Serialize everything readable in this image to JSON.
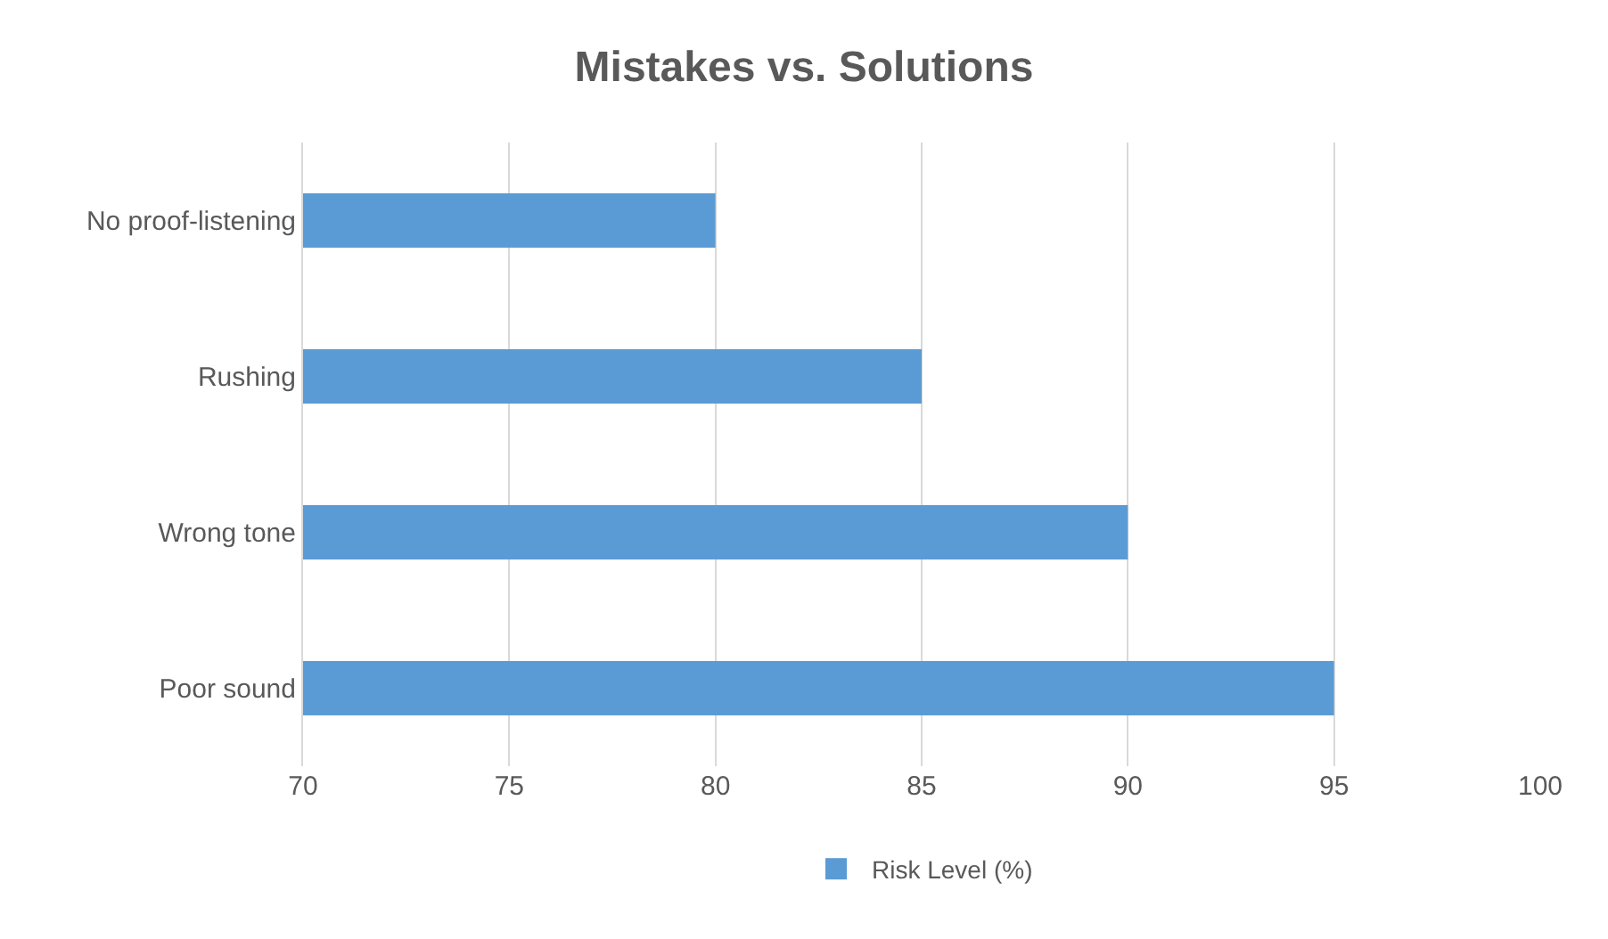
{
  "chart_data": {
    "type": "bar",
    "title": "Mistakes vs. Solutions",
    "orientation": "horizontal",
    "categories": [
      "No proof-listening",
      "Rushing",
      "Wrong tone",
      "Poor sound"
    ],
    "series": [
      {
        "name": "Risk Level (%)",
        "color": "#5b9bd5",
        "values": [
          80,
          85,
          90,
          95
        ]
      }
    ],
    "xlim": [
      70,
      100
    ],
    "xticks": [
      70,
      75,
      80,
      85,
      90,
      95,
      100
    ],
    "grid": "x",
    "legend": "bottom"
  }
}
